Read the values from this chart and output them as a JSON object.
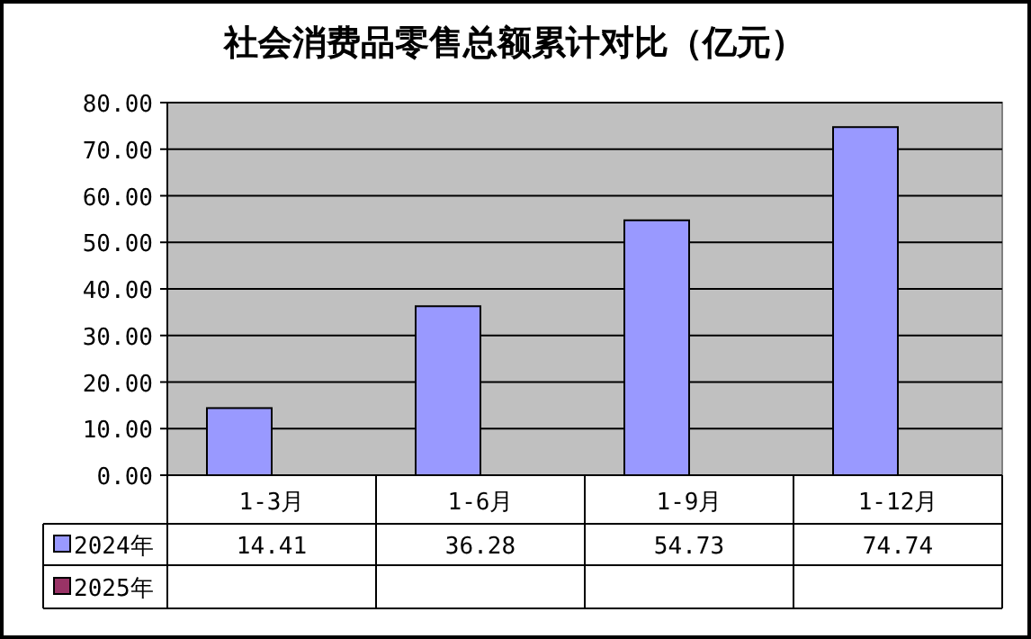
{
  "chart_data": {
    "type": "bar",
    "title": "社会消费品零售总额累计对比（亿元）",
    "categories": [
      "1-3月",
      "1-6月",
      "1-9月",
      "1-12月"
    ],
    "series": [
      {
        "name": "2024年",
        "color": "#9999ff",
        "values": [
          14.41,
          36.28,
          54.73,
          74.74
        ]
      },
      {
        "name": "2025年",
        "color": "#993366",
        "values": [
          null,
          null,
          null,
          null
        ]
      }
    ],
    "ylim": [
      0,
      80
    ],
    "yticks": [
      {
        "value": 0,
        "label": "0.00"
      },
      {
        "value": 10,
        "label": "10.00"
      },
      {
        "value": 20,
        "label": "20.00"
      },
      {
        "value": 30,
        "label": "30.00"
      },
      {
        "value": 40,
        "label": "40.00"
      },
      {
        "value": 50,
        "label": "50.00"
      },
      {
        "value": 60,
        "label": "60.00"
      },
      {
        "value": 70,
        "label": "70.00"
      },
      {
        "value": 80,
        "label": "80.00"
      }
    ],
    "grid": "y",
    "legend": "bottom",
    "data_labels": true
  }
}
